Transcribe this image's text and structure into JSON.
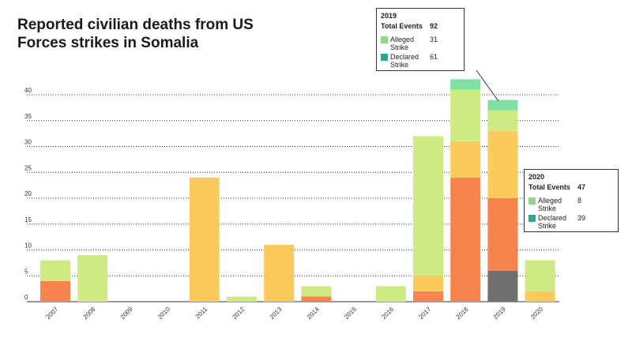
{
  "title": "Reported civilian deaths from US Forces strikes in Somalia",
  "colors": {
    "lime": "#cdeb82",
    "yellow": "#fcc95c",
    "orange": "#f7834f",
    "gray": "#6f6f6f",
    "mint": "#7fe0a4",
    "tooltip_alleged": "#8fd68a",
    "tooltip_declared": "#2fa594"
  },
  "chart_data": {
    "type": "bar",
    "stacked": true,
    "categories": [
      "2007",
      "2008",
      "2009",
      "2010",
      "2011",
      "2012",
      "2013",
      "2014",
      "2015",
      "2016",
      "2017",
      "2018",
      "2019",
      "2020"
    ],
    "yticks": [
      0,
      5,
      10,
      15,
      20,
      25,
      30,
      35,
      40
    ],
    "ylim": [
      0,
      45
    ],
    "grid": true,
    "segments": [
      {
        "year": "2007",
        "from": 0,
        "to": 4,
        "color": "orange"
      },
      {
        "year": "2007",
        "from": 4,
        "to": 8,
        "color": "lime"
      },
      {
        "year": "2008",
        "from": 0,
        "to": 9,
        "color": "lime"
      },
      {
        "year": "2011",
        "from": 0,
        "to": 24,
        "color": "yellow"
      },
      {
        "year": "2012",
        "from": 0,
        "to": 1,
        "color": "lime"
      },
      {
        "year": "2013",
        "from": 0,
        "to": 11,
        "color": "yellow"
      },
      {
        "year": "2014",
        "from": 0,
        "to": 1,
        "color": "orange"
      },
      {
        "year": "2014",
        "from": 1,
        "to": 3,
        "color": "lime"
      },
      {
        "year": "2016",
        "from": 0,
        "to": 3,
        "color": "lime"
      },
      {
        "year": "2017",
        "from": 0,
        "to": 2,
        "color": "orange"
      },
      {
        "year": "2017",
        "from": 2,
        "to": 5,
        "color": "yellow"
      },
      {
        "year": "2017",
        "from": 5,
        "to": 32,
        "color": "lime"
      },
      {
        "year": "2018",
        "from": 0,
        "to": 24,
        "color": "orange"
      },
      {
        "year": "2018",
        "from": 24,
        "to": 31,
        "color": "yellow"
      },
      {
        "year": "2018",
        "from": 31,
        "to": 41,
        "color": "lime"
      },
      {
        "year": "2018",
        "from": 41,
        "to": 43,
        "color": "mint"
      },
      {
        "year": "2019",
        "from": 0,
        "to": 6,
        "color": "gray"
      },
      {
        "year": "2019",
        "from": 6,
        "to": 20,
        "color": "orange"
      },
      {
        "year": "2019",
        "from": 20,
        "to": 33,
        "color": "yellow"
      },
      {
        "year": "2019",
        "from": 33,
        "to": 37,
        "color": "lime"
      },
      {
        "year": "2019",
        "from": 37,
        "to": 39,
        "color": "mint"
      },
      {
        "year": "2020",
        "from": 0,
        "to": 2,
        "color": "yellow"
      },
      {
        "year": "2020",
        "from": 2,
        "to": 8,
        "color": "lime"
      }
    ]
  },
  "tooltips": [
    {
      "year": "2019",
      "total_label": "Total Events",
      "total_value": "92",
      "alleged_label": "Alleged Strike",
      "alleged_value": "31",
      "declared_label": "Declared Strike",
      "declared_value": "61"
    },
    {
      "year": "2020",
      "total_label": "Total Events",
      "total_value": "47",
      "alleged_label": "Alleged Strike",
      "alleged_value": "8",
      "declared_label": "Declared Strike",
      "declared_value": "39"
    }
  ]
}
